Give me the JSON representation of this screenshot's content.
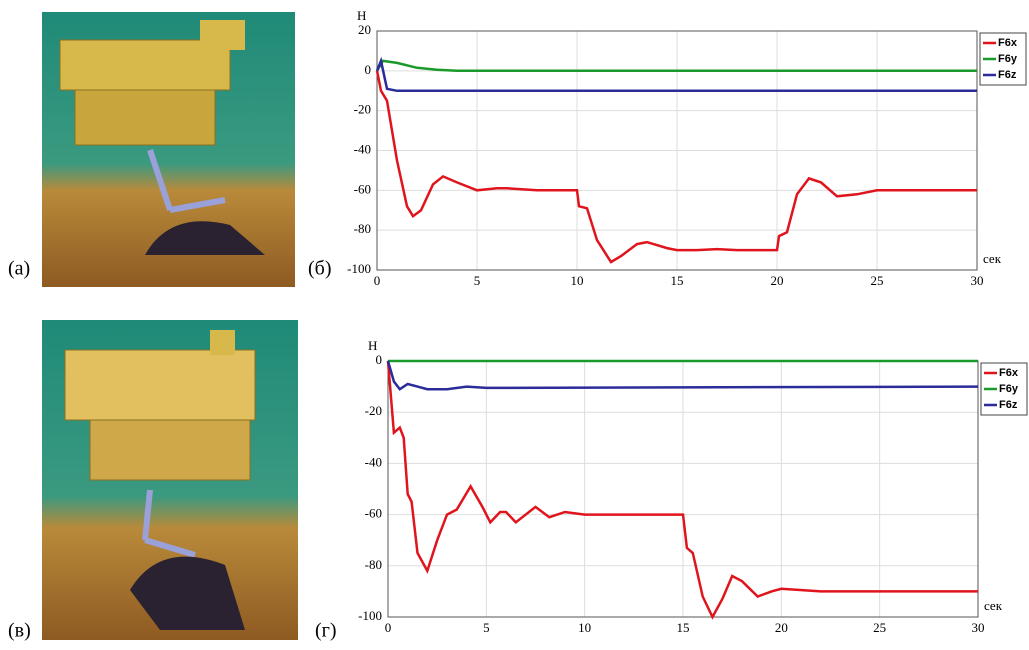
{
  "panel_labels": [
    "(а)",
    "(б)",
    "(в)",
    "(г)"
  ],
  "chart_data": [
    {
      "type": "line",
      "y_label": "Н",
      "x_label": "сек",
      "xlim": [
        0,
        30
      ],
      "ylim": [
        -100,
        20
      ],
      "xticks": [
        0,
        5,
        10,
        15,
        20,
        25,
        30
      ],
      "yticks": [
        -100,
        -80,
        -60,
        -40,
        -20,
        0,
        20
      ],
      "grid": true,
      "legend": "right",
      "series": [
        {
          "name": "F6x",
          "color": "#e0141c",
          "x": [
            0,
            0.2,
            0.5,
            1,
            1.5,
            1.8,
            2.2,
            2.8,
            3.3,
            4,
            5,
            6,
            6.5,
            8,
            10,
            10.1,
            10.5,
            11,
            11.7,
            12.2,
            13,
            13.5,
            14.5,
            15,
            16,
            17,
            18,
            20,
            20.1,
            20.5,
            21,
            21.6,
            22.2,
            23,
            24,
            25,
            26,
            28,
            30
          ],
          "values": [
            0,
            -10,
            -15,
            -45,
            -68,
            -73,
            -70,
            -57,
            -53,
            -56,
            -60,
            -59,
            -59,
            -60,
            -60,
            -68,
            -69,
            -85,
            -96,
            -93,
            -87,
            -86,
            -89,
            -90,
            -90,
            -89.5,
            -90,
            -90,
            -83,
            -81,
            -62,
            -54,
            -56,
            -63,
            -62,
            -60,
            -60,
            -60,
            -60
          ]
        },
        {
          "name": "F6y",
          "color": "#1a9a2a",
          "x": [
            0,
            0.3,
            1,
            2,
            3,
            4,
            10,
            20,
            30
          ],
          "values": [
            0,
            5,
            4,
            1.5,
            0.5,
            0,
            0,
            0,
            0
          ]
        },
        {
          "name": "F6z",
          "color": "#2b2b9a",
          "x": [
            0,
            0.2,
            0.5,
            1,
            3,
            10,
            20,
            30
          ],
          "values": [
            0,
            5,
            -9,
            -10,
            -10,
            -10,
            -10,
            -10
          ]
        }
      ]
    },
    {
      "type": "line",
      "y_label": "Н",
      "x_label": "сек",
      "xlim": [
        0,
        30
      ],
      "ylim": [
        -100,
        0
      ],
      "xticks": [
        0,
        5,
        10,
        15,
        20,
        25,
        30
      ],
      "yticks": [
        -100,
        -80,
        -60,
        -40,
        -20,
        0
      ],
      "grid": true,
      "legend": "right",
      "series": [
        {
          "name": "F6x",
          "color": "#e0141c",
          "x": [
            0,
            0.3,
            0.6,
            0.8,
            1,
            1.2,
            1.5,
            2,
            2.5,
            3,
            3.5,
            4.2,
            4.8,
            5.2,
            5.7,
            6,
            6.5,
            7.5,
            8.2,
            9,
            10,
            12,
            15,
            15.2,
            15.5,
            16,
            16.5,
            17,
            17.5,
            18,
            18.8,
            19.5,
            20,
            22,
            30
          ],
          "values": [
            0,
            -28,
            -26,
            -30,
            -52,
            -55,
            -75,
            -82,
            -70,
            -60,
            -58,
            -49,
            -57,
            -63,
            -59,
            -59,
            -63,
            -57,
            -61,
            -59,
            -60,
            -60,
            -60,
            -73,
            -75,
            -92,
            -100,
            -93,
            -84,
            -86,
            -92,
            -90,
            -89,
            -90,
            -90
          ]
        },
        {
          "name": "F6y",
          "color": "#1a9a2a",
          "x": [
            0,
            30
          ],
          "values": [
            0,
            0
          ]
        },
        {
          "name": "F6z",
          "color": "#2b2b9a",
          "x": [
            0,
            0.3,
            0.6,
            1,
            1.5,
            2,
            3,
            4,
            5,
            30
          ],
          "values": [
            0,
            -8,
            -11,
            -9,
            -10,
            -11,
            -11,
            -10,
            -10.5,
            -10
          ]
        }
      ]
    }
  ]
}
